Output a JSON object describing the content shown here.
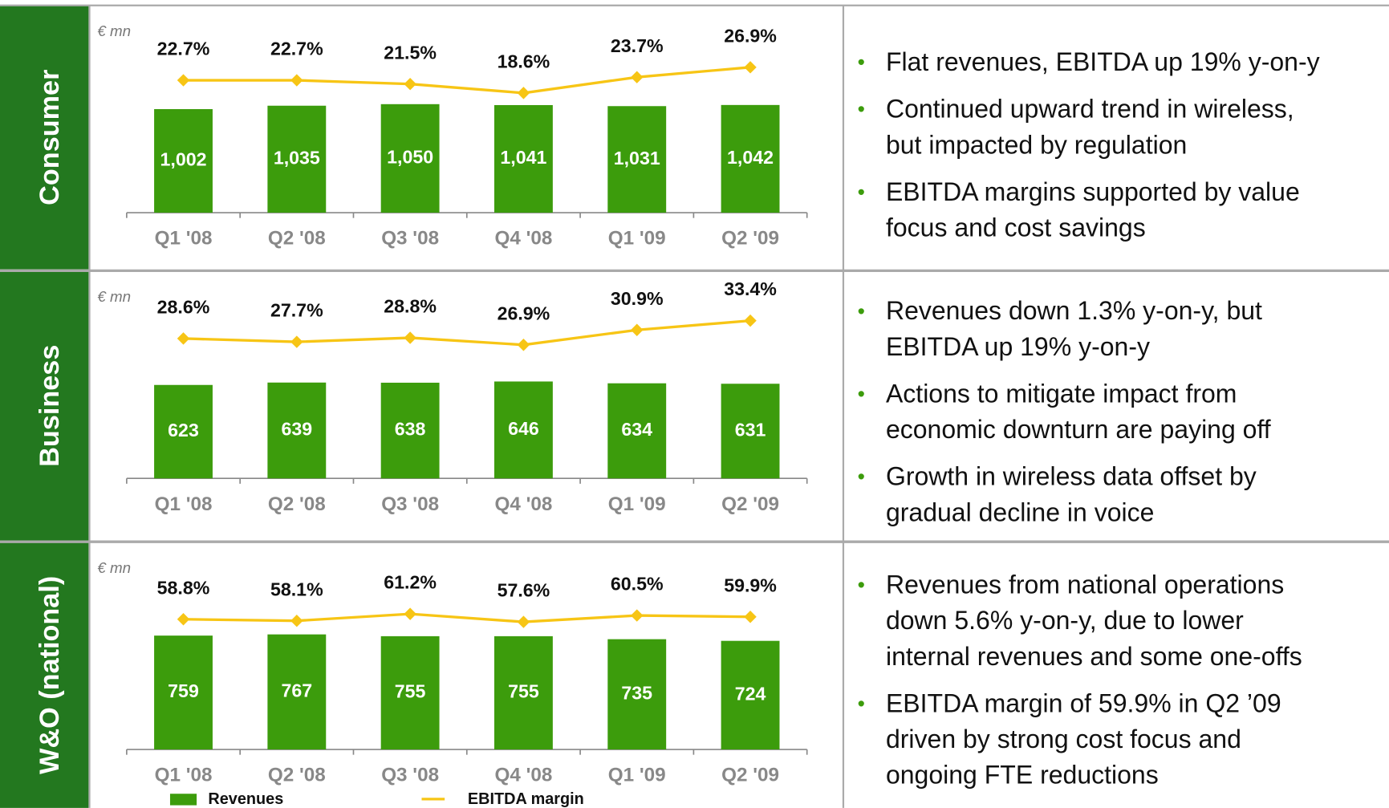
{
  "sections": [
    {
      "label": "Consumer",
      "bullets": [
        [
          "Flat revenues, EBITDA up 19% y-on-y"
        ],
        [
          "Continued upward trend in wireless,",
          "but impacted by regulation"
        ],
        [
          "EBITDA margins supported by value",
          "focus and cost savings"
        ]
      ]
    },
    {
      "label": "Business",
      "bullets": [
        [
          "Revenues down 1.3% y-on-y, but",
          "EBITDA up 19% y-on-y"
        ],
        [
          "Actions to mitigate impact from",
          "economic downturn are paying off"
        ],
        [
          "Growth in wireless data offset by",
          "gradual decline in voice"
        ]
      ]
    },
    {
      "label": "W&O (national)",
      "bullets": [
        [
          "Revenues from national operations",
          "down 5.6% y-on-y, due to lower",
          "internal revenues and some one-offs"
        ],
        [
          "EBITDA margin of 59.9% in Q2 ’09",
          "driven by strong cost focus and",
          "ongoing FTE reductions"
        ]
      ]
    }
  ],
  "chart_data": [
    {
      "type": "bar_line",
      "unit_label": "€ mn",
      "categories": [
        "Q1 '08",
        "Q2 '08",
        "Q3 '08",
        "Q4 '08",
        "Q1 '09",
        "Q2 '09"
      ],
      "ylim": [
        0,
        1800
      ],
      "y2lim": [
        -20,
        40
      ],
      "series": [
        {
          "color": "#3c9c0c",
          "values": [
            1002,
            1035,
            1050,
            1041,
            1031,
            1042
          ],
          "value_labels": [
            "1,002",
            "1,035",
            "1,050",
            "1,041",
            "1,031",
            "1,042"
          ]
        },
        {
          "color": "#f7c515",
          "axis": "y2",
          "values": [
            22.7,
            22.7,
            21.5,
            18.6,
            23.7,
            26.9
          ],
          "value_labels": [
            "22.7%",
            "22.7%",
            "21.5%",
            "18.6%",
            "23.7%",
            "26.9%"
          ]
        }
      ]
    },
    {
      "type": "bar_line",
      "unit_label": "€ mn",
      "categories": [
        "Q1 '08",
        "Q2 '08",
        "Q3 '08",
        "Q4 '08",
        "Q1 '09",
        "Q2 '09"
      ],
      "ylim": [
        0,
        1240
      ],
      "y2lim": [
        -9,
        41
      ],
      "series": [
        {
          "color": "#3c9c0c",
          "values": [
            623,
            639,
            638,
            646,
            634,
            631
          ]
        },
        {
          "color": "#f7c515",
          "axis": "y2",
          "values": [
            28.6,
            27.7,
            28.8,
            26.9,
            30.9,
            33.4
          ],
          "value_labels": [
            "28.6%",
            "27.7%",
            "28.8%",
            "26.9%",
            "30.9%",
            "33.4%"
          ]
        }
      ]
    },
    {
      "type": "bar_line",
      "unit_label": "€ mn",
      "categories": [
        "Q1 '08",
        "Q2 '08",
        "Q3 '08",
        "Q4 '08",
        "Q1 '09",
        "Q2 '09"
      ],
      "ylim": [
        0,
        1240
      ],
      "y2lim": [
        0,
        84
      ],
      "series": [
        {
          "name": "Revenues",
          "color": "#3c9c0c",
          "values": [
            759,
            767,
            755,
            755,
            735,
            724
          ]
        },
        {
          "name": "EBITDA margin",
          "color": "#f7c515",
          "axis": "y2",
          "values": [
            58.8,
            58.1,
            61.2,
            57.6,
            60.5,
            59.9
          ],
          "value_labels": [
            "58.8%",
            "58.1%",
            "61.2%",
            "57.6%",
            "60.5%",
            "59.9%"
          ]
        }
      ]
    }
  ]
}
